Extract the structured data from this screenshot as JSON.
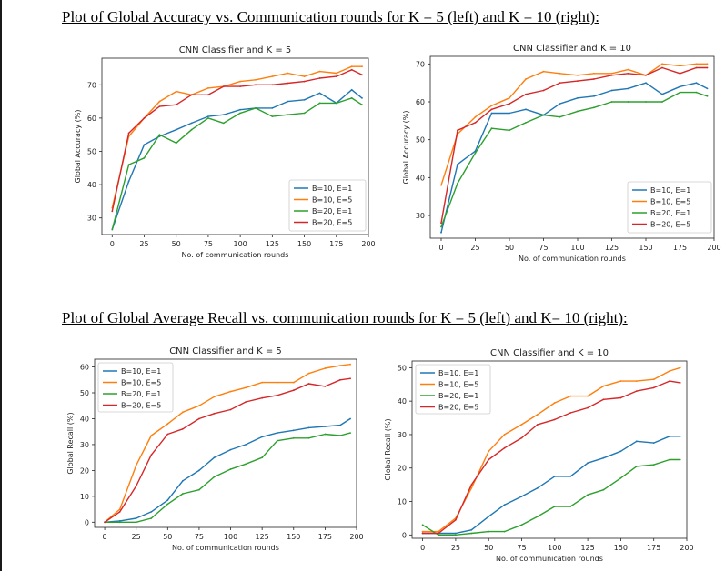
{
  "headings": {
    "accuracy": "Plot of Global Accuracy vs. Communication rounds for K = 5 (left) and K = 10 (right):",
    "recall": "Plot of Global Average Recall vs. communication rounds for K = 5 (left) and K= 10 (right):"
  },
  "colors": {
    "B=10, E=1": "#1f77b4",
    "B=10, E=5": "#ff7f0e",
    "B=20, E=1": "#2ca02c",
    "B=20, E=5": "#d62728"
  },
  "chart_data": [
    {
      "type": "line",
      "title": "CNN Classifier and K = 5",
      "xlabel": "No. of communication rounds",
      "ylabel": "Global Accuracy (%)",
      "xlim": [
        -8,
        200
      ],
      "ylim": [
        25,
        78
      ],
      "xticks": [
        0,
        25,
        50,
        75,
        100,
        125,
        150,
        175,
        200
      ],
      "yticks": [
        30,
        40,
        50,
        60,
        70
      ],
      "grid": false,
      "legend": "lower-right",
      "x": [
        0,
        13,
        25,
        37,
        50,
        62,
        75,
        87,
        100,
        112,
        125,
        137,
        150,
        162,
        175,
        187,
        195
      ],
      "series": [
        {
          "name": "B=10, E=1",
          "values": [
            26.5,
            41,
            52,
            54.5,
            56.5,
            58.5,
            60.5,
            61,
            62.5,
            63,
            63,
            65,
            65.5,
            67.5,
            64.5,
            68.5,
            66
          ]
        },
        {
          "name": "B=10, E=5",
          "values": [
            33,
            54.5,
            60,
            65,
            68,
            67,
            69,
            69.5,
            71,
            71.5,
            72.5,
            73.5,
            72.5,
            74,
            73.5,
            75.5,
            75.5
          ]
        },
        {
          "name": "B=20, E=1",
          "values": [
            26.5,
            46,
            48,
            55,
            52.5,
            56.5,
            60,
            58.5,
            61.5,
            63,
            60.5,
            61,
            61.5,
            64.5,
            64.5,
            66,
            64
          ]
        },
        {
          "name": "B=20, E=5",
          "values": [
            32,
            55.5,
            60,
            63.5,
            64,
            67,
            67,
            69.5,
            69.5,
            70,
            70,
            70.5,
            71,
            72,
            72.5,
            74.5,
            73
          ]
        }
      ]
    },
    {
      "type": "line",
      "title": "CNN Classifier and K = 10",
      "xlabel": "No. of communication rounds",
      "ylabel": "Global Accuracy (%)",
      "xlim": [
        -8,
        200
      ],
      "ylim": [
        24,
        72
      ],
      "xticks": [
        0,
        25,
        50,
        75,
        100,
        125,
        150,
        175,
        200
      ],
      "yticks": [
        30,
        40,
        50,
        60,
        70
      ],
      "grid": false,
      "legend": "lower-right",
      "x": [
        0,
        12,
        25,
        37,
        50,
        62,
        75,
        87,
        100,
        112,
        125,
        137,
        150,
        162,
        175,
        187,
        195
      ],
      "series": [
        {
          "name": "B=10, E=1",
          "values": [
            25.5,
            43.5,
            47,
            57,
            57,
            58,
            56.5,
            59.5,
            61,
            61.5,
            63,
            63.5,
            65,
            62,
            64,
            65,
            63.5
          ]
        },
        {
          "name": "B=10, E=5",
          "values": [
            38,
            51.5,
            56,
            59,
            61,
            66,
            68,
            67.5,
            67,
            67.5,
            67.5,
            68.5,
            67,
            70,
            69.5,
            70,
            70
          ]
        },
        {
          "name": "B=20, E=1",
          "values": [
            27,
            38.5,
            46.5,
            53,
            52.5,
            54.5,
            56.5,
            56,
            57.5,
            58.5,
            60,
            60,
            60,
            60,
            62.5,
            62.5,
            61.5
          ]
        },
        {
          "name": "B=20, E=5",
          "values": [
            28,
            52.5,
            54.5,
            58,
            59.5,
            62,
            63,
            65,
            65.5,
            66,
            67,
            67.5,
            67,
            69,
            67.5,
            69,
            69
          ]
        }
      ]
    },
    {
      "type": "line",
      "title": "CNN Classifier and K = 5",
      "xlabel": "No. of communication rounds",
      "ylabel": "Global Recall (%)",
      "xlim": [
        -8,
        200
      ],
      "ylim": [
        -2,
        63
      ],
      "xticks": [
        0,
        25,
        50,
        75,
        100,
        125,
        150,
        175,
        200
      ],
      "yticks": [
        0,
        10,
        20,
        30,
        40,
        50,
        60
      ],
      "grid": false,
      "legend": "upper-left",
      "x": [
        0,
        12,
        25,
        37,
        50,
        62,
        75,
        87,
        100,
        112,
        125,
        137,
        150,
        162,
        175,
        187,
        195
      ],
      "series": [
        {
          "name": "B=10, E=1",
          "values": [
            0,
            0.5,
            1.5,
            4,
            8.5,
            16,
            20,
            25,
            28,
            30,
            33,
            34.5,
            35.5,
            36.5,
            37,
            37.5,
            40
          ]
        },
        {
          "name": "B=10, E=5",
          "values": [
            0,
            5,
            22,
            33.5,
            38,
            42.5,
            45,
            48.5,
            50.5,
            52,
            54,
            54,
            54,
            57.5,
            59.5,
            60.5,
            61
          ]
        },
        {
          "name": "B=20, E=1",
          "values": [
            0,
            0,
            0,
            1.5,
            7,
            11,
            12.5,
            17.5,
            20.5,
            22.5,
            25,
            31.5,
            32.5,
            32.5,
            34,
            33.5,
            34.5
          ]
        },
        {
          "name": "B=20, E=5",
          "values": [
            0,
            4,
            14,
            26,
            34,
            36,
            40,
            42,
            43.5,
            46.5,
            48,
            49,
            51,
            53.5,
            52.5,
            55,
            55.5
          ]
        }
      ]
    },
    {
      "type": "line",
      "title": "CNN Classifier and K = 10",
      "xlabel": "No. of communication rounds",
      "ylabel": "Global Recall (%)",
      "xlim": [
        -8,
        200
      ],
      "ylim": [
        -1,
        52
      ],
      "xticks": [
        0,
        25,
        50,
        75,
        100,
        125,
        150,
        175,
        200
      ],
      "yticks": [
        0,
        10,
        20,
        30,
        40,
        50
      ],
      "grid": false,
      "legend": "upper-left",
      "x": [
        0,
        12,
        25,
        37,
        50,
        62,
        75,
        87,
        100,
        112,
        125,
        137,
        150,
        162,
        175,
        187,
        195
      ],
      "series": [
        {
          "name": "B=10, E=1",
          "values": [
            0.5,
            0.5,
            0.5,
            1.5,
            5.5,
            9,
            11.5,
            14,
            17.5,
            17.5,
            21.5,
            23,
            25,
            28,
            27.5,
            29.5,
            29.5
          ]
        },
        {
          "name": "B=10, E=5",
          "values": [
            1,
            1,
            5,
            14,
            25,
            30,
            33,
            36,
            39.5,
            41.5,
            41.5,
            44.5,
            46,
            46,
            46.5,
            49,
            50
          ]
        },
        {
          "name": "B=20, E=1",
          "values": [
            3,
            0,
            0,
            0.5,
            1,
            1,
            3,
            5.5,
            8.5,
            8.5,
            12,
            13.5,
            17,
            20.5,
            21,
            22.5,
            22.5
          ]
        },
        {
          "name": "B=20, E=5",
          "values": [
            0.5,
            0.5,
            4.5,
            15,
            22.5,
            26,
            29,
            33,
            34.5,
            36.5,
            38,
            40.5,
            41,
            43,
            44,
            46,
            45.5
          ]
        }
      ]
    }
  ]
}
